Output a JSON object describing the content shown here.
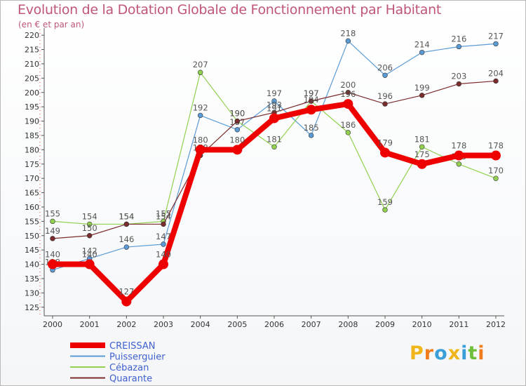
{
  "header": {
    "title": "Evolution de la Dotation Globale de Fonctionnement par Habitant",
    "subtitle": "(en € et par an)"
  },
  "logo": {
    "letters": [
      "P",
      "r",
      "o",
      "x",
      "i",
      "t",
      "i"
    ],
    "colors": [
      "#f0b51a",
      "#f07c1e",
      "#3a9fd8",
      "#f0b51a",
      "#3a9fd8",
      "#6fbf3a",
      "#f07c1e"
    ]
  },
  "chart_data": {
    "type": "line",
    "x": [
      "2000",
      "2001",
      "2002",
      "2003",
      "2004",
      "2005",
      "2006",
      "2007",
      "2008",
      "2009",
      "2010",
      "2011",
      "2012"
    ],
    "ylim": [
      122,
      222
    ],
    "yticks": [
      125,
      130,
      135,
      140,
      145,
      150,
      155,
      160,
      165,
      170,
      175,
      180,
      185,
      190,
      195,
      200,
      205,
      210,
      215,
      220
    ],
    "grid": false,
    "legend_position": "bottom-left",
    "series": [
      {
        "name": "Puisserguier",
        "color": "#5b9bd5",
        "values": [
          138,
          142,
          146,
          147,
          192,
          187,
          197,
          185,
          218,
          206,
          214,
          216,
          217
        ]
      },
      {
        "name": "Cébazan",
        "color": "#92d050",
        "values": [
          155,
          154,
          154,
          155,
          207,
          190,
          181,
          197,
          186,
          159,
          181,
          175,
          170
        ]
      },
      {
        "name": "Quarante",
        "color": "#7b2c2c",
        "values": [
          149,
          150,
          154,
          154,
          178,
          190,
          193,
          197,
          200,
          196,
          199,
          203,
          204
        ]
      },
      {
        "name": "CREISSAN",
        "color": "#ee0000",
        "values": [
          140,
          140,
          127,
          140,
          180,
          180,
          191,
          194,
          196,
          179,
          175,
          178,
          178
        ]
      }
    ],
    "legend_order": [
      "CREISSAN",
      "Puisserguier",
      "Cébazan",
      "Quarante"
    ]
  }
}
